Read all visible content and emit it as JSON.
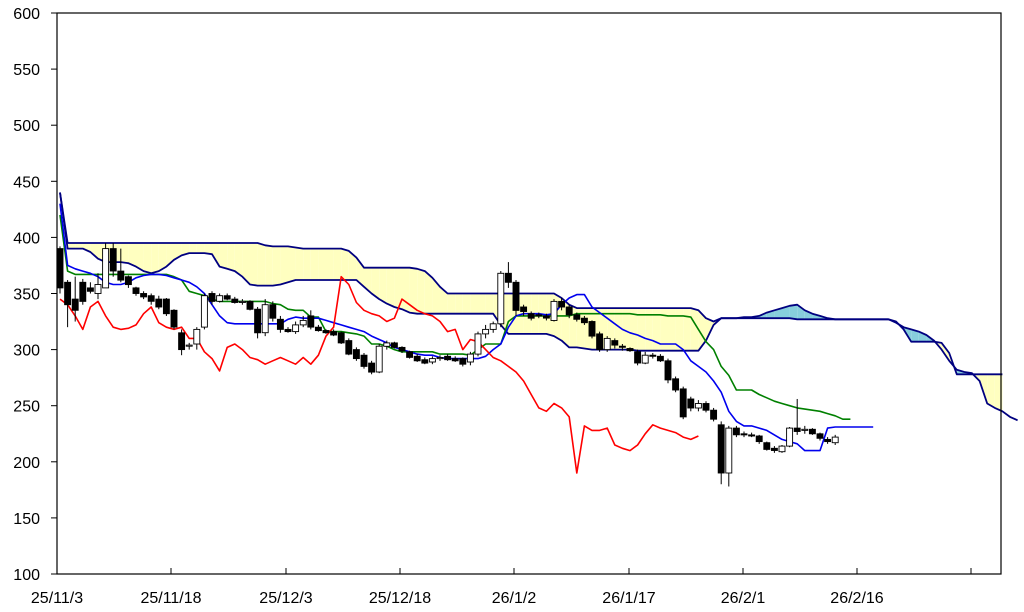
{
  "chart_data": {
    "type": "candlestick",
    "indicator": "Ichimoku Kinko Hyo",
    "ylim": [
      100,
      600
    ],
    "y_ticks": [
      "600",
      "550",
      "500",
      "450",
      "400",
      "350",
      "300",
      "250",
      "200",
      "150",
      "100"
    ],
    "x_ticks": [
      "25/11/3",
      "25/11/18",
      "25/12/3",
      "25/12/18",
      "26/1/2",
      "26/1/17",
      "26/2/1",
      "26/2/16"
    ],
    "grid": false,
    "colors": {
      "tenkan": "#0000ee",
      "kijun": "#008000",
      "chikou": "#ff0000",
      "span_a": "#000080",
      "span_b": "#000080",
      "kumo_up": "#ffffc0",
      "kumo_down": "#87cedc",
      "candle_up": "#ffffff",
      "candle_down": "#000000"
    },
    "candles": [
      {
        "o": 390,
        "h": 392,
        "l": 350,
        "c": 355
      },
      {
        "o": 360,
        "h": 362,
        "l": 320,
        "c": 340
      },
      {
        "o": 345,
        "h": 365,
        "l": 325,
        "c": 335
      },
      {
        "o": 360,
        "h": 363,
        "l": 340,
        "c": 343
      },
      {
        "o": 355,
        "h": 360,
        "l": 350,
        "c": 352
      },
      {
        "o": 350,
        "h": 368,
        "l": 345,
        "c": 358
      },
      {
        "o": 355,
        "h": 395,
        "l": 355,
        "c": 390
      },
      {
        "o": 390,
        "h": 395,
        "l": 365,
        "c": 370
      },
      {
        "o": 370,
        "h": 390,
        "l": 360,
        "c": 362
      },
      {
        "o": 365,
        "h": 366,
        "l": 355,
        "c": 358
      },
      {
        "o": 355,
        "h": 356,
        "l": 348,
        "c": 350
      },
      {
        "o": 350,
        "h": 352,
        "l": 345,
        "c": 347
      },
      {
        "o": 348,
        "h": 350,
        "l": 340,
        "c": 343
      },
      {
        "o": 345,
        "h": 348,
        "l": 336,
        "c": 338
      },
      {
        "o": 345,
        "h": 346,
        "l": 330,
        "c": 332
      },
      {
        "o": 335,
        "h": 336,
        "l": 318,
        "c": 320
      },
      {
        "o": 315,
        "h": 318,
        "l": 295,
        "c": 300
      },
      {
        "o": 303,
        "h": 306,
        "l": 300,
        "c": 304
      },
      {
        "o": 305,
        "h": 320,
        "l": 300,
        "c": 318
      },
      {
        "o": 320,
        "h": 350,
        "l": 318,
        "c": 348
      },
      {
        "o": 350,
        "h": 352,
        "l": 340,
        "c": 343
      },
      {
        "o": 343,
        "h": 350,
        "l": 342,
        "c": 348
      },
      {
        "o": 348,
        "h": 350,
        "l": 344,
        "c": 345
      },
      {
        "o": 345,
        "h": 347,
        "l": 341,
        "c": 342
      },
      {
        "o": 342,
        "h": 345,
        "l": 340,
        "c": 343
      },
      {
        "o": 343,
        "h": 344,
        "l": 335,
        "c": 336
      },
      {
        "o": 336,
        "h": 338,
        "l": 310,
        "c": 315
      },
      {
        "o": 315,
        "h": 345,
        "l": 312,
        "c": 340
      },
      {
        "o": 340,
        "h": 343,
        "l": 325,
        "c": 328
      },
      {
        "o": 327,
        "h": 330,
        "l": 315,
        "c": 318
      },
      {
        "o": 318,
        "h": 320,
        "l": 315,
        "c": 316
      },
      {
        "o": 316,
        "h": 325,
        "l": 314,
        "c": 322
      },
      {
        "o": 322,
        "h": 330,
        "l": 320,
        "c": 326
      },
      {
        "o": 330,
        "h": 335,
        "l": 318,
        "c": 320
      },
      {
        "o": 320,
        "h": 322,
        "l": 316,
        "c": 317
      },
      {
        "o": 317,
        "h": 318,
        "l": 314,
        "c": 315
      },
      {
        "o": 316,
        "h": 318,
        "l": 312,
        "c": 313
      },
      {
        "o": 315,
        "h": 316,
        "l": 305,
        "c": 306
      },
      {
        "o": 308,
        "h": 310,
        "l": 295,
        "c": 296
      },
      {
        "o": 300,
        "h": 302,
        "l": 290,
        "c": 292
      },
      {
        "o": 295,
        "h": 297,
        "l": 283,
        "c": 285
      },
      {
        "o": 288,
        "h": 290,
        "l": 278,
        "c": 280
      },
      {
        "o": 280,
        "h": 305,
        "l": 279,
        "c": 303
      },
      {
        "o": 303,
        "h": 308,
        "l": 300,
        "c": 306
      },
      {
        "o": 306,
        "h": 307,
        "l": 301,
        "c": 302
      },
      {
        "o": 302,
        "h": 303,
        "l": 297,
        "c": 299
      },
      {
        "o": 298,
        "h": 299,
        "l": 292,
        "c": 293
      },
      {
        "o": 294,
        "h": 296,
        "l": 289,
        "c": 290
      },
      {
        "o": 291,
        "h": 293,
        "l": 287,
        "c": 288
      },
      {
        "o": 289,
        "h": 294,
        "l": 287,
        "c": 292
      },
      {
        "o": 292,
        "h": 295,
        "l": 290,
        "c": 293
      },
      {
        "o": 294,
        "h": 296,
        "l": 290,
        "c": 291
      },
      {
        "o": 292,
        "h": 294,
        "l": 289,
        "c": 290
      },
      {
        "o": 292,
        "h": 293,
        "l": 285,
        "c": 287
      },
      {
        "o": 289,
        "h": 298,
        "l": 286,
        "c": 296
      },
      {
        "o": 296,
        "h": 316,
        "l": 294,
        "c": 314
      },
      {
        "o": 314,
        "h": 322,
        "l": 310,
        "c": 318
      },
      {
        "o": 318,
        "h": 325,
        "l": 315,
        "c": 323
      },
      {
        "o": 323,
        "h": 370,
        "l": 320,
        "c": 368
      },
      {
        "o": 368,
        "h": 378,
        "l": 355,
        "c": 360
      },
      {
        "o": 360,
        "h": 362,
        "l": 330,
        "c": 335
      },
      {
        "o": 338,
        "h": 340,
        "l": 330,
        "c": 334
      },
      {
        "o": 332,
        "h": 334,
        "l": 326,
        "c": 328
      },
      {
        "o": 331,
        "h": 333,
        "l": 328,
        "c": 330
      },
      {
        "o": 330,
        "h": 332,
        "l": 326,
        "c": 328
      },
      {
        "o": 326,
        "h": 345,
        "l": 325,
        "c": 343
      },
      {
        "o": 343,
        "h": 346,
        "l": 335,
        "c": 338
      },
      {
        "o": 338,
        "h": 340,
        "l": 328,
        "c": 331
      },
      {
        "o": 331,
        "h": 333,
        "l": 325,
        "c": 327
      },
      {
        "o": 328,
        "h": 330,
        "l": 322,
        "c": 324
      },
      {
        "o": 325,
        "h": 326,
        "l": 310,
        "c": 312
      },
      {
        "o": 314,
        "h": 316,
        "l": 298,
        "c": 300
      },
      {
        "o": 300,
        "h": 312,
        "l": 298,
        "c": 310
      },
      {
        "o": 308,
        "h": 310,
        "l": 301,
        "c": 304
      },
      {
        "o": 303,
        "h": 305,
        "l": 299,
        "c": 302
      },
      {
        "o": 301,
        "h": 302,
        "l": 298,
        "c": 299
      },
      {
        "o": 298,
        "h": 300,
        "l": 286,
        "c": 288
      },
      {
        "o": 288,
        "h": 298,
        "l": 287,
        "c": 295
      },
      {
        "o": 295,
        "h": 297,
        "l": 292,
        "c": 294
      },
      {
        "o": 294,
        "h": 296,
        "l": 289,
        "c": 290
      },
      {
        "o": 290,
        "h": 292,
        "l": 270,
        "c": 273
      },
      {
        "o": 274,
        "h": 276,
        "l": 262,
        "c": 264
      },
      {
        "o": 265,
        "h": 267,
        "l": 238,
        "c": 240
      },
      {
        "o": 256,
        "h": 258,
        "l": 245,
        "c": 248
      },
      {
        "o": 248,
        "h": 255,
        "l": 245,
        "c": 252
      },
      {
        "o": 252,
        "h": 254,
        "l": 244,
        "c": 246
      },
      {
        "o": 246,
        "h": 248,
        "l": 236,
        "c": 238
      },
      {
        "o": 233,
        "h": 236,
        "l": 180,
        "c": 190
      },
      {
        "o": 190,
        "h": 232,
        "l": 178,
        "c": 230
      },
      {
        "o": 230,
        "h": 232,
        "l": 222,
        "c": 224
      },
      {
        "o": 225,
        "h": 227,
        "l": 222,
        "c": 224
      },
      {
        "o": 224,
        "h": 226,
        "l": 222,
        "c": 223
      },
      {
        "o": 223,
        "h": 224,
        "l": 216,
        "c": 218
      },
      {
        "o": 217,
        "h": 218,
        "l": 210,
        "c": 211
      },
      {
        "o": 212,
        "h": 214,
        "l": 208,
        "c": 210
      },
      {
        "o": 209,
        "h": 215,
        "l": 208,
        "c": 214
      },
      {
        "o": 214,
        "h": 231,
        "l": 213,
        "c": 230
      },
      {
        "o": 230,
        "h": 256,
        "l": 224,
        "c": 227
      },
      {
        "o": 228,
        "h": 232,
        "l": 225,
        "c": 229
      },
      {
        "o": 229,
        "h": 230,
        "l": 224,
        "c": 225
      },
      {
        "o": 225,
        "h": 226,
        "l": 219,
        "c": 221
      },
      {
        "o": 220,
        "h": 222,
        "l": 216,
        "c": 218
      },
      {
        "o": 217,
        "h": 224,
        "l": 215,
        "c": 222
      }
    ],
    "series": [
      {
        "key": "tenkan",
        "start": 0,
        "values": [
          430,
          375,
          372,
          370,
          368,
          365,
          360,
          358,
          358,
          360,
          364,
          366,
          367,
          367,
          366,
          364,
          362,
          360,
          356,
          350,
          340,
          330,
          324,
          323,
          323,
          323,
          323,
          323,
          323,
          323,
          327,
          329,
          328,
          328,
          328,
          326,
          324,
          322,
          320,
          318,
          316,
          312,
          309,
          306,
          302,
          300,
          298,
          296,
          295,
          295,
          293,
          292,
          292,
          292,
          292,
          292,
          294,
          300,
          305,
          320,
          330,
          332,
          332,
          332,
          331,
          332,
          340,
          346,
          349,
          349,
          338,
          333,
          328,
          323,
          318,
          315,
          313,
          310,
          308,
          305,
          305,
          305,
          300,
          290,
          285,
          280,
          272,
          262,
          245,
          236,
          232,
          232,
          230,
          228,
          224,
          220,
          218,
          216,
          210,
          210,
          210,
          230,
          231,
          231,
          231,
          231,
          231,
          231
        ]
      },
      {
        "key": "kijun",
        "start": 0,
        "values": [
          420,
          370,
          367,
          367,
          367,
          367,
          367,
          367,
          367,
          367,
          367,
          367,
          367,
          367,
          367,
          365,
          362,
          352,
          350,
          348,
          345,
          343,
          343,
          343,
          343,
          343,
          343,
          343,
          341,
          340,
          336,
          335,
          335,
          329,
          329,
          316,
          316,
          316,
          315,
          314,
          312,
          305,
          305,
          303,
          300,
          298,
          298,
          298,
          298,
          298,
          296,
          296,
          296,
          296,
          295,
          300,
          305,
          305,
          305,
          325,
          330,
          330,
          330,
          330,
          330,
          330,
          330,
          330,
          332,
          332,
          332,
          332,
          332,
          332,
          332,
          332,
          331,
          331,
          331,
          331,
          330,
          330,
          330,
          329,
          318,
          307,
          300,
          285,
          277,
          264,
          264,
          264,
          260,
          257,
          254,
          252,
          250,
          248,
          247,
          246,
          245,
          243,
          241,
          238,
          238
        ]
      },
      {
        "key": "chikou",
        "start": 0,
        "values": [
          345,
          340,
          330,
          318,
          338,
          343,
          330,
          320,
          318,
          319,
          322,
          332,
          338,
          324,
          320,
          318,
          320,
          310,
          310,
          298,
          292,
          281,
          302,
          305,
          300,
          293,
          291,
          287,
          290,
          293,
          290,
          287,
          293,
          287,
          295,
          312,
          320,
          365,
          358,
          342,
          335,
          332,
          330,
          325,
          328,
          345,
          340,
          335,
          332,
          330,
          325,
          316,
          318,
          300,
          309,
          307,
          300,
          293,
          290,
          285,
          280,
          272,
          260,
          248,
          245,
          252,
          248,
          240,
          190,
          232,
          228,
          228,
          230,
          215,
          212,
          210,
          215,
          225,
          233,
          230,
          228,
          226,
          222,
          220,
          223
        ]
      },
      {
        "key": "span_a",
        "start": 0,
        "values": [
          440,
          395,
          395,
          395,
          395,
          395,
          395,
          395,
          395,
          395,
          395,
          395,
          395,
          395,
          395,
          395,
          395,
          395,
          395,
          395,
          395,
          395,
          395,
          395,
          395,
          395,
          395,
          393,
          392,
          392,
          392,
          391,
          390,
          390,
          390,
          390,
          390,
          390,
          388,
          382,
          373,
          373,
          373,
          373,
          373,
          373,
          373,
          372,
          370,
          364,
          356,
          350,
          350,
          350,
          350,
          350,
          350,
          350,
          350,
          350,
          350,
          350,
          350,
          350,
          350,
          350,
          346,
          340,
          337,
          337,
          337,
          337,
          337,
          337,
          337,
          337,
          337,
          337,
          337,
          337,
          337,
          337,
          337,
          337,
          335,
          328,
          325,
          328,
          328,
          328,
          328,
          328,
          328,
          328,
          328,
          328,
          328,
          327,
          327,
          327,
          327,
          327,
          327,
          327,
          327,
          327,
          327,
          327,
          327,
          327,
          325,
          318,
          307,
          307,
          307,
          307,
          306,
          297,
          278,
          278,
          278,
          278,
          278,
          278,
          278
        ]
      },
      {
        "key": "span_b",
        "start": 0,
        "values": [
          440,
          390,
          390,
          390,
          387,
          381,
          378,
          378,
          378,
          377,
          374,
          370,
          368,
          370,
          374,
          380,
          384,
          386,
          386,
          386,
          385,
          374,
          372,
          370,
          365,
          358,
          357,
          357,
          357,
          358,
          360,
          362,
          362,
          362,
          362,
          362,
          362,
          362,
          362,
          362,
          356,
          350,
          345,
          341,
          338,
          336,
          333,
          332,
          332,
          332,
          332,
          332,
          332,
          332,
          332,
          332,
          332,
          332,
          322,
          314,
          314,
          314,
          314,
          314,
          314,
          312,
          308,
          302,
          302,
          301,
          300,
          300,
          300,
          300,
          300,
          300,
          299,
          299,
          299,
          299,
          299,
          299,
          299,
          299,
          299,
          308,
          322,
          328,
          328,
          328,
          329,
          329,
          330,
          333,
          335,
          337,
          339,
          340,
          335,
          332,
          330,
          328,
          327,
          327,
          327,
          327,
          327,
          327,
          327,
          327,
          324,
          320,
          318,
          316,
          313,
          308,
          300,
          290,
          282,
          280,
          279,
          272,
          252,
          248,
          245,
          240,
          237
        ]
      }
    ]
  }
}
